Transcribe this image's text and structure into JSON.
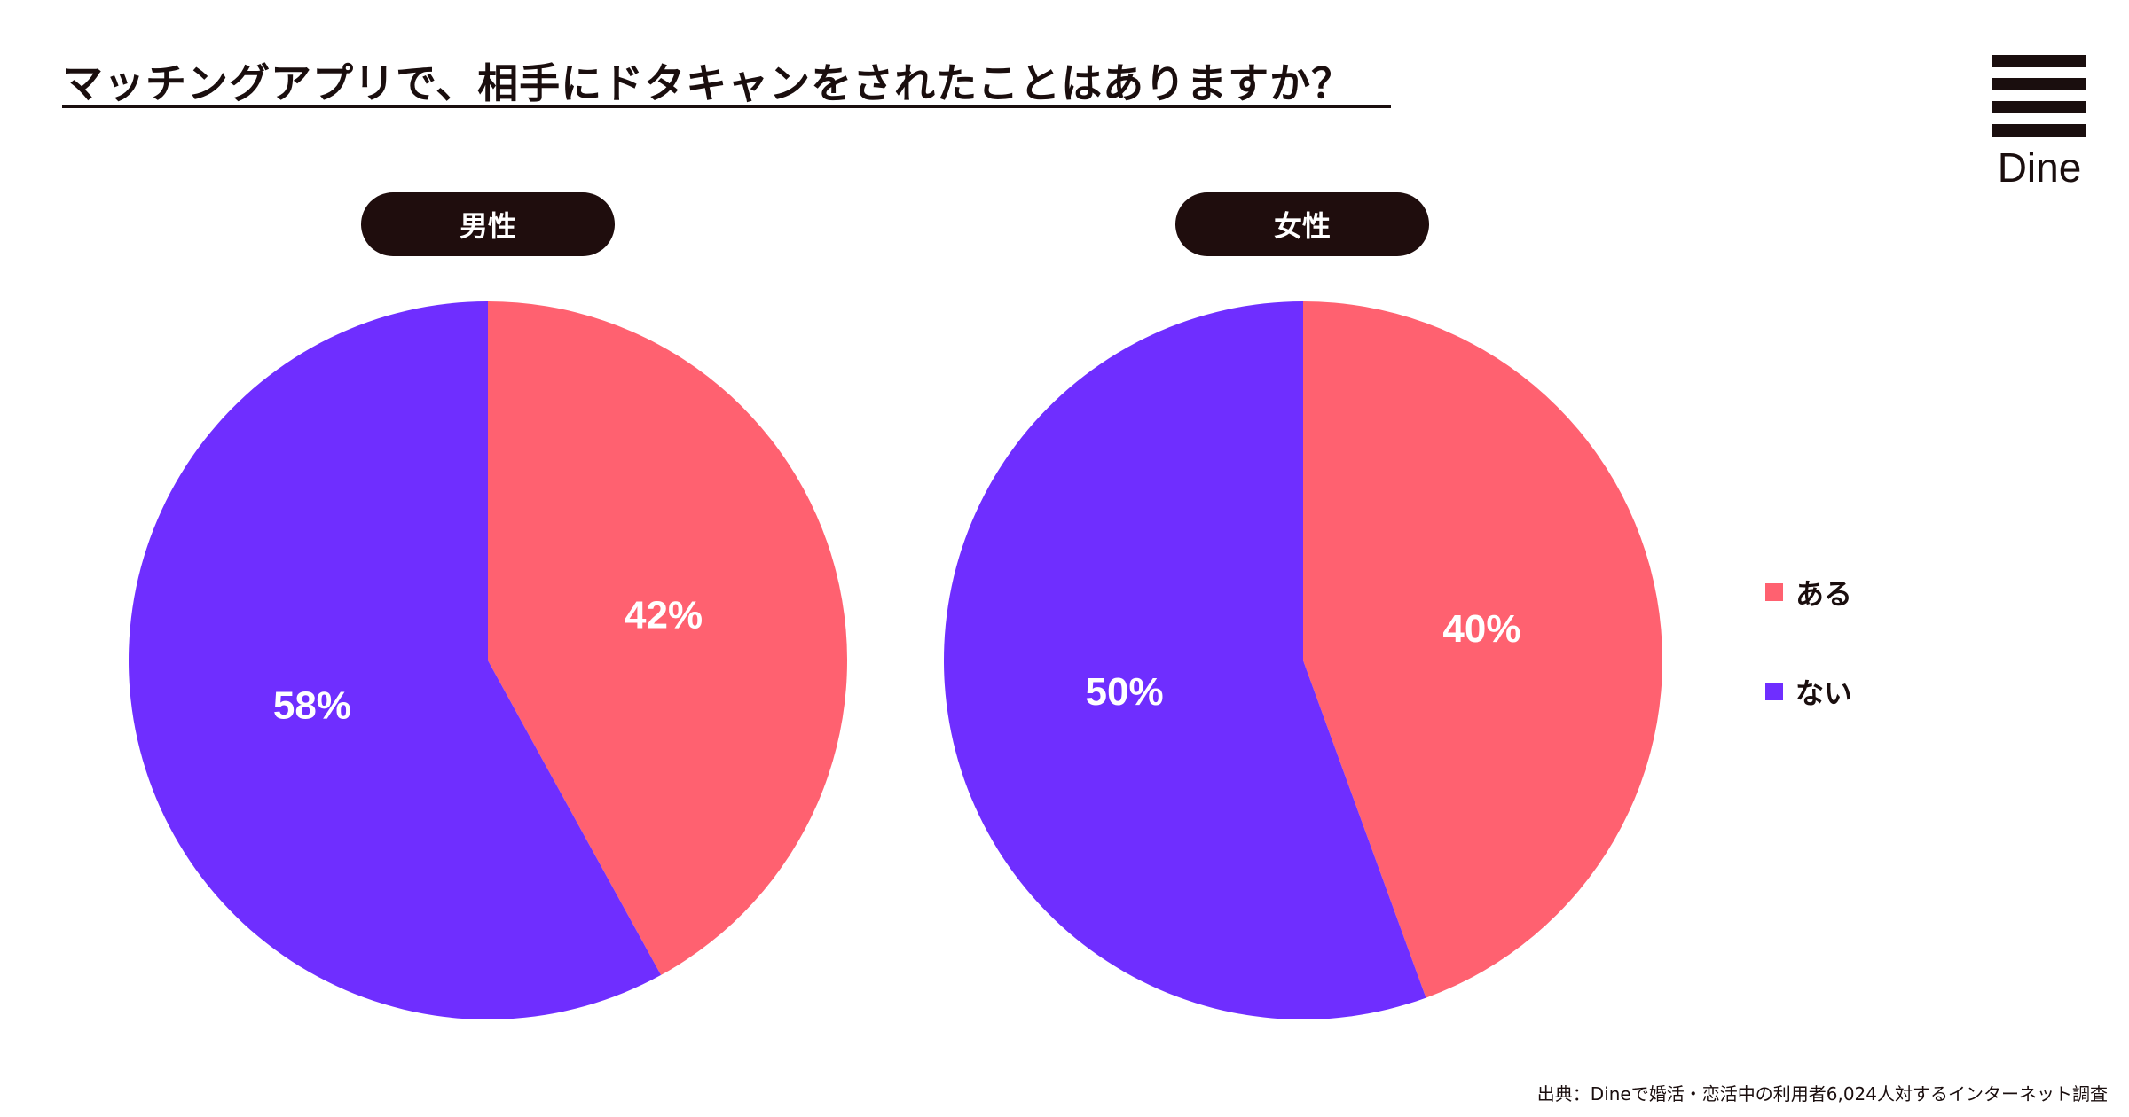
{
  "title": "マッチングアプリで、相手にドタキャンをされたことはありますか？",
  "logo": {
    "text": "Dine",
    "icon": "three-bars-logo-icon"
  },
  "colors": {
    "aru": "#FF6170",
    "nai": "#6F2EFF",
    "dark": "#1f0d0d"
  },
  "legend": {
    "position": "right",
    "items": [
      {
        "label": "ある",
        "color": "#FF6170"
      },
      {
        "label": "ない",
        "color": "#6F2EFF"
      }
    ]
  },
  "source": "出典：Dineで婚活・恋活中の利用者6,024人対するインターネット調査",
  "chart_data": [
    {
      "type": "pie",
      "title": "男性",
      "slices": [
        {
          "label": "ある",
          "value": 42,
          "display": "42%",
          "color": "#FF6170"
        },
        {
          "label": "ない",
          "value": 58,
          "display": "58%",
          "color": "#6F2EFF"
        }
      ]
    },
    {
      "type": "pie",
      "title": "女性",
      "slices": [
        {
          "label": "ある",
          "value": 40,
          "display": "40%",
          "color": "#FF6170"
        },
        {
          "label": "ない",
          "value": 50,
          "display": "50%",
          "color": "#6F2EFF"
        }
      ]
    }
  ]
}
